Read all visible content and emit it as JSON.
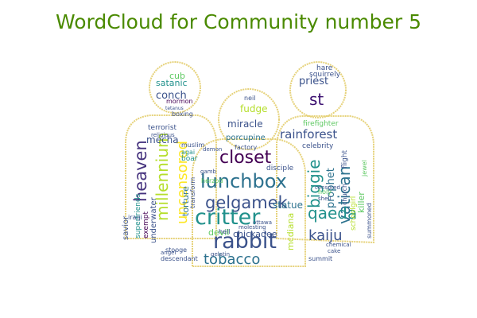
{
  "title": "WordCloud for Community number 5",
  "colors": {
    "title": "#4a8a00",
    "outline": "#e6d27a",
    "palette": [
      "#440154",
      "#3b528b",
      "#21918c",
      "#5ec962",
      "#fde725"
    ]
  },
  "words": [
    {
      "text": "critter",
      "color": "#21918c"
    },
    {
      "text": "rabbit",
      "color": "#3b528b"
    },
    {
      "text": "lunchbox",
      "color": "#2c718e"
    },
    {
      "text": "gelgamek",
      "color": "#3b528b"
    },
    {
      "text": "closet",
      "color": "#440154"
    },
    {
      "text": "tobacco",
      "color": "#2c718e"
    },
    {
      "text": "millennium",
      "color": "#b5de2b"
    },
    {
      "text": "heaven",
      "color": "#46337e"
    },
    {
      "text": "uncensored",
      "color": "#fde725"
    },
    {
      "text": "vatican",
      "color": "#2c728e"
    },
    {
      "text": "biggie",
      "color": "#21918c"
    },
    {
      "text": "qaeda",
      "color": "#21918c"
    },
    {
      "text": "kaiju",
      "color": "#3b528b"
    },
    {
      "text": "prophet",
      "color": "#2c728e"
    },
    {
      "text": "rainforest",
      "color": "#3b528b"
    },
    {
      "text": "st",
      "color": "#3b0f70"
    },
    {
      "text": "priest",
      "color": "#3b528b"
    },
    {
      "text": "satanic",
      "color": "#21918c"
    },
    {
      "text": "conch",
      "color": "#3b528b"
    },
    {
      "text": "cub",
      "color": "#5ec962"
    },
    {
      "text": "miracle",
      "color": "#3b528b"
    },
    {
      "text": "fudge",
      "color": "#b5de2b"
    },
    {
      "text": "porcupine",
      "color": "#2c728e"
    },
    {
      "text": "mecha",
      "color": "#3b528b"
    },
    {
      "text": "torture",
      "color": "#2c728e"
    },
    {
      "text": "statue",
      "color": "#2c728e"
    },
    {
      "text": "devil",
      "color": "#5ec962"
    },
    {
      "text": "chickadee",
      "color": "#3b528b"
    },
    {
      "text": "mcdiana",
      "color": "#b5de2b"
    },
    {
      "text": "underwater",
      "color": "#3b528b"
    },
    {
      "text": "superfriends",
      "color": "#21918c"
    },
    {
      "text": "savior",
      "color": "#3b528b"
    },
    {
      "text": "exempt",
      "color": "#440154"
    },
    {
      "text": "iraqi",
      "color": "#3b528b"
    },
    {
      "text": "boar",
      "color": "#21918c"
    },
    {
      "text": "agai",
      "color": "#21918c"
    },
    {
      "text": "muslim",
      "color": "#3b528b"
    },
    {
      "text": "terrorist",
      "color": "#3b528b"
    },
    {
      "text": "factory",
      "color": "#3b528b"
    },
    {
      "text": "disciple",
      "color": "#3b528b"
    },
    {
      "text": "firefighter",
      "color": "#5ec962"
    },
    {
      "text": "squirrely",
      "color": "#3b528b"
    },
    {
      "text": "hare",
      "color": "#3b528b"
    },
    {
      "text": "celebrity",
      "color": "#3b528b"
    },
    {
      "text": "killer",
      "color": "#5ec962"
    },
    {
      "text": "schoolgirl",
      "color": "#b5de2b"
    },
    {
      "text": "jewel",
      "color": "#5ec962"
    },
    {
      "text": "flight",
      "color": "#3b528b"
    },
    {
      "text": "church",
      "color": "#3b528b"
    },
    {
      "text": "holy",
      "color": "#5ec962"
    },
    {
      "text": "summit",
      "color": "#3b528b"
    },
    {
      "text": "summoned",
      "color": "#3b528b"
    },
    {
      "text": "mormon",
      "color": "#440154"
    },
    {
      "text": "boxing",
      "color": "#3b528b"
    },
    {
      "text": "neil",
      "color": "#3b528b"
    },
    {
      "text": "stooge",
      "color": "#3b528b"
    },
    {
      "text": "descendant",
      "color": "#3b528b"
    },
    {
      "text": "angel",
      "color": "#3b528b"
    },
    {
      "text": "demon",
      "color": "#3b528b"
    },
    {
      "text": "molesting",
      "color": "#3b528b"
    },
    {
      "text": "hell",
      "color": "#3b528b"
    },
    {
      "text": "transform",
      "color": "#3b528b"
    },
    {
      "text": "herzod",
      "color": "#5ec962"
    },
    {
      "text": "gamb",
      "color": "#3b528b"
    },
    {
      "text": "gelatin",
      "color": "#3b528b"
    },
    {
      "text": "censored",
      "color": "#3b528b"
    },
    {
      "text": "cake",
      "color": "#3b528b"
    },
    {
      "text": "shell",
      "color": "#3b528b"
    },
    {
      "text": "chemical",
      "color": "#3b528b"
    },
    {
      "text": "tetanus",
      "color": "#3b528b"
    },
    {
      "text": "religious",
      "color": "#3b528b"
    },
    {
      "text": "ottawa",
      "color": "#3b528b"
    }
  ]
}
